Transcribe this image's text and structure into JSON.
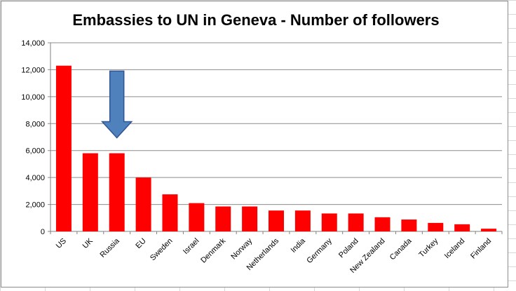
{
  "chart_data": {
    "type": "bar",
    "title": "Embassies to UN in Geneva - Number of followers",
    "xlabel": "",
    "ylabel": "",
    "categories": [
      "US",
      "UK",
      "Russia",
      "EU",
      "Sweden",
      "Israel",
      "Denmark",
      "Norway",
      "Netherlands",
      "India",
      "Germany",
      "Poland",
      "New Zealand",
      "Canada",
      "Turkey",
      "Iceland",
      "Finland"
    ],
    "values": [
      12300,
      5800,
      5800,
      4000,
      2750,
      2100,
      1850,
      1850,
      1550,
      1550,
      1330,
      1330,
      1050,
      880,
      630,
      530,
      200
    ],
    "ylim": [
      0,
      14000
    ],
    "yticks": [
      0,
      2000,
      4000,
      6000,
      8000,
      10000,
      12000,
      14000
    ],
    "ytick_labels": [
      "0",
      "2,000",
      "4,000",
      "6,000",
      "8,000",
      "10,000",
      "12,000",
      "14,000"
    ],
    "grid": true,
    "legend": "none",
    "bar_color": "#ff0000",
    "annotation": {
      "shape": "down-arrow",
      "target_category": "Russia",
      "color": "#4f81bd",
      "top_value": 11900
    }
  }
}
